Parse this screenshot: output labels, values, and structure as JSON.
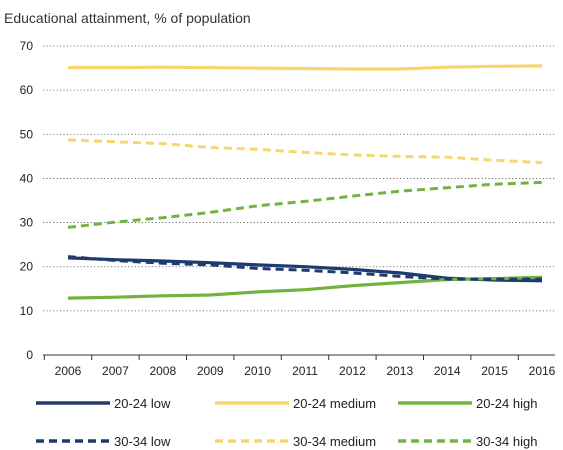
{
  "chart_data": {
    "type": "line",
    "subtitle": "Educational attainment, % of population",
    "x": [
      "2006",
      "2007",
      "2008",
      "2009",
      "2010",
      "2011",
      "2012",
      "2013",
      "2014",
      "2015",
      "2016"
    ],
    "ylim": [
      0,
      70
    ],
    "yticks": [
      "0",
      "10",
      "20",
      "30",
      "40",
      "50",
      "60",
      "70"
    ],
    "grid": "horizontal-dotted",
    "legend_position": "bottom",
    "series": [
      {
        "name": "20-24 low",
        "color": "#1f3a6e",
        "style": "solid",
        "values": [
          22.0,
          21.6,
          21.3,
          20.9,
          20.4,
          20.0,
          19.4,
          18.6,
          17.4,
          17.0,
          16.8
        ]
      },
      {
        "name": "20-24 medium",
        "color": "#f5d76e",
        "style": "solid",
        "values": [
          65.1,
          65.1,
          65.2,
          65.1,
          65.0,
          64.9,
          64.8,
          64.8,
          65.2,
          65.4,
          65.5
        ]
      },
      {
        "name": "20-24 high",
        "color": "#72b340",
        "style": "solid",
        "values": [
          12.9,
          13.1,
          13.4,
          13.6,
          14.3,
          14.8,
          15.7,
          16.4,
          17.1,
          17.3,
          17.6
        ]
      },
      {
        "name": "30-34 low",
        "color": "#1f3a6e",
        "style": "dashed",
        "values": [
          22.3,
          21.4,
          20.8,
          20.4,
          19.6,
          19.2,
          18.6,
          17.8,
          17.2,
          17.2,
          17.2
        ]
      },
      {
        "name": "30-34 medium",
        "color": "#f5d76e",
        "style": "dashed",
        "values": [
          48.7,
          48.3,
          47.9,
          47.0,
          46.6,
          45.9,
          45.3,
          45.0,
          44.8,
          44.1,
          43.6
        ]
      },
      {
        "name": "30-34 high",
        "color": "#72b340",
        "style": "dashed",
        "values": [
          28.9,
          30.1,
          31.1,
          32.3,
          33.8,
          34.8,
          36.0,
          37.1,
          37.9,
          38.7,
          39.1
        ]
      }
    ]
  }
}
